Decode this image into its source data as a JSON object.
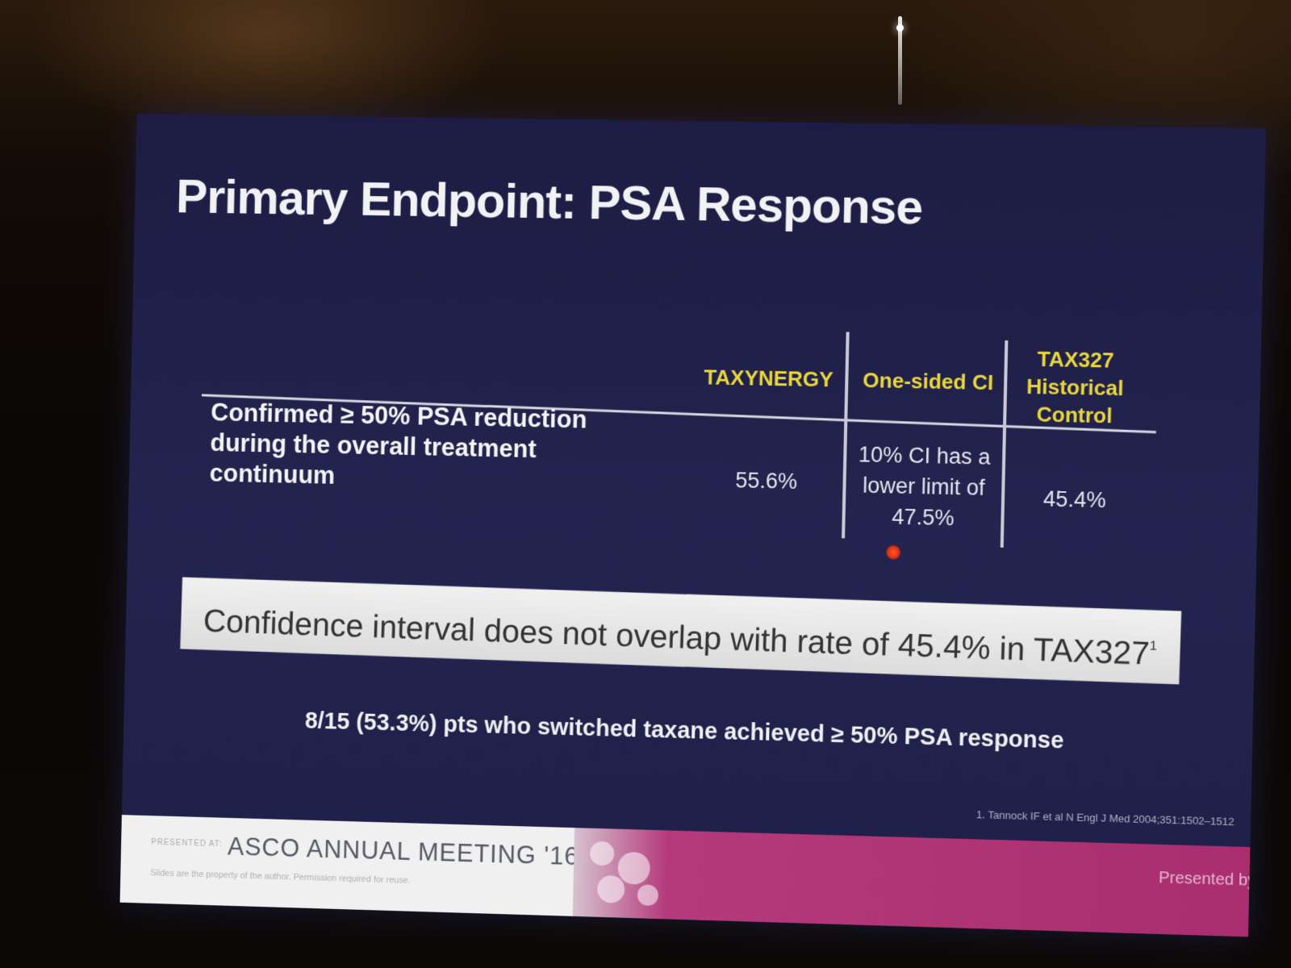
{
  "slide": {
    "title": "Primary Endpoint: PSA Response",
    "table": {
      "columns": [
        "TAXYNERGY",
        "One-sided CI",
        "TAX327 Historical Control"
      ],
      "row_label": "Confirmed ≥ 50% PSA reduction during the overall treatment continuum",
      "cells": [
        "55.6%",
        "10% CI has a lower limit of 47.5%",
        "45.4%"
      ]
    },
    "callout": {
      "text": "Confidence interval does not overlap with rate of 45.4% in TAX327",
      "superscript": "1"
    },
    "note": "8/15 (53.3%) pts who switched taxane achieved ≥ 50% PSA response",
    "reference": "1. Tannock IF et al N Engl J Med 2004;351:1502–1512"
  },
  "footer": {
    "presented_at": "PRESENTED AT:",
    "meeting": "ASCO ANNUAL MEETING '16",
    "disclaimer": "Slides are the property of the author. Permission required for reuse.",
    "presenter": "Presented by: Scott T. Tagawa"
  },
  "colors": {
    "slide_background": "#22234c",
    "header_yellow": "#e9d63a",
    "footer_magenta": "#a92e70"
  }
}
